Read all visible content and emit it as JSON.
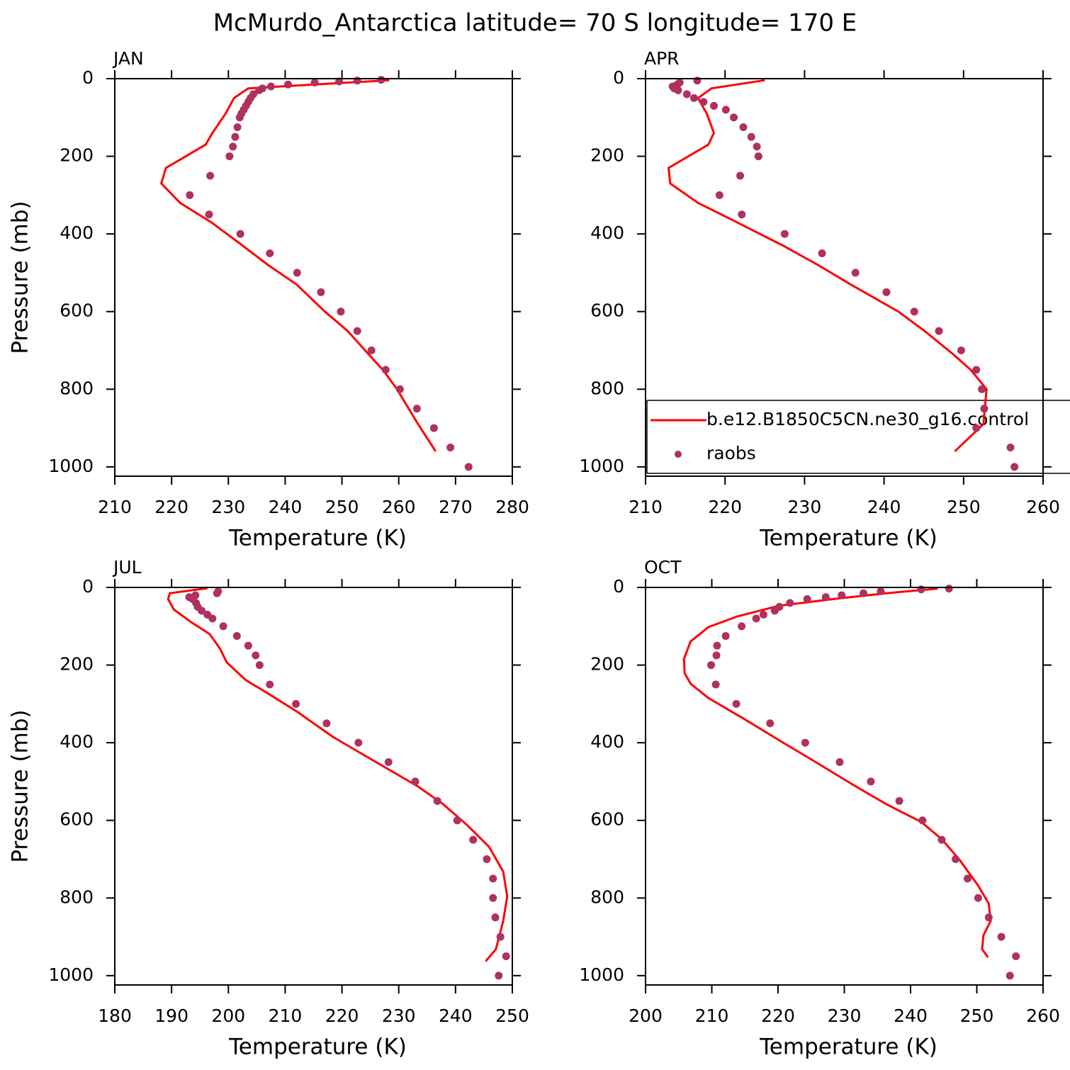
{
  "title": "McMurdo_Antarctica  latitude= 70 S longitude= 170 E",
  "chart_data": [
    {
      "type": "line",
      "label": "JAN",
      "xlabel": "Temperature (K)",
      "ylabel": "Pressure (mb)",
      "xlim": [
        210,
        280
      ],
      "ylim": [
        1024,
        0
      ],
      "xticks": [
        210,
        220,
        230,
        240,
        250,
        260,
        270,
        280
      ],
      "yticks": [
        0,
        200,
        400,
        600,
        800,
        1000
      ],
      "series": [
        {
          "type": "line",
          "color": "#ff0000",
          "x": [
            258.3,
            233.5,
            231,
            229.5,
            227.2,
            226,
            219,
            218.2,
            221.5,
            227,
            232.5,
            237,
            242,
            247,
            251,
            254.7,
            257.2,
            259.7,
            263.4,
            266.5
          ],
          "values": [
            4,
            25,
            50,
            90,
            140,
            170,
            230,
            270,
            320,
            370,
            430,
            480,
            530,
            600,
            650,
            710,
            750,
            800,
            890,
            960
          ]
        },
        {
          "type": "scatter",
          "color": "#b03060",
          "x": [
            272.3,
            269.1,
            266.2,
            263.2,
            260.2,
            257.7,
            255.2,
            252.7,
            249.8,
            246.3,
            242.1,
            237.3,
            232.1,
            226.6,
            223.2,
            226.8,
            230.2,
            230.8,
            231.2,
            231.6,
            232,
            232.3,
            232.7,
            233.1,
            233.5,
            233.9,
            234.4,
            235.4,
            236,
            237.5,
            240.5,
            245.2,
            249.5,
            252.7,
            256.9
          ],
          "values": [
            1000,
            950,
            900,
            850,
            800,
            750,
            700,
            650,
            600,
            550,
            500,
            450,
            400,
            350,
            300,
            250,
            200,
            175,
            150,
            125,
            100,
            90,
            80,
            70,
            60,
            50,
            40,
            30,
            25,
            20,
            15,
            10,
            7,
            5,
            3
          ]
        }
      ]
    },
    {
      "type": "line",
      "label": "APR",
      "xlabel": "Temperature (K)",
      "legend": "lower-right",
      "xlim": [
        210,
        260
      ],
      "ylim": [
        1024,
        0
      ],
      "xticks": [
        210,
        220,
        230,
        240,
        250,
        260
      ],
      "yticks": [
        0,
        200,
        400,
        600,
        800,
        1000
      ],
      "series": [
        {
          "type": "line",
          "name": "b.e12.B1850C5CN.ne30_g16.control",
          "color": "#ff0000",
          "x": [
            225,
            218.3,
            216.6,
            217.7,
            218.6,
            217.9,
            212.9,
            213.1,
            216.6,
            221.5,
            227.3,
            231.7,
            235.8,
            241.8,
            245.1,
            248.7,
            250.9,
            252.9,
            252.5,
            248.9
          ],
          "values": [
            4,
            25,
            50,
            90,
            140,
            170,
            230,
            270,
            320,
            370,
            430,
            480,
            530,
            600,
            650,
            710,
            750,
            800,
            890,
            960
          ]
        },
        {
          "type": "scatter",
          "name": "raobs",
          "color": "#b03060",
          "x": [
            256.4,
            255.9,
            251.6,
            252.6,
            252.3,
            251.6,
            249.7,
            246.9,
            243.8,
            240.3,
            236.4,
            232.2,
            227.5,
            222.1,
            219.3,
            221.9,
            224.2,
            224,
            223.3,
            222.3,
            221.1,
            220.1,
            218.6,
            217.3,
            216.1,
            215.2,
            214.1,
            213.6,
            213.4,
            214,
            214.3,
            216.5
          ],
          "values": [
            1000,
            950,
            900,
            850,
            800,
            750,
            700,
            650,
            600,
            550,
            500,
            450,
            400,
            350,
            300,
            250,
            200,
            175,
            150,
            125,
            100,
            80,
            70,
            60,
            50,
            40,
            30,
            25,
            20,
            15,
            10,
            5
          ]
        }
      ]
    },
    {
      "type": "line",
      "label": "JUL",
      "xlabel": "Temperature (K)",
      "ylabel": "Pressure (mb)",
      "xlim": [
        180,
        250
      ],
      "ylim": [
        1024,
        0
      ],
      "xticks": [
        180,
        190,
        200,
        210,
        220,
        230,
        240,
        250
      ],
      "yticks": [
        0,
        200,
        400,
        600,
        800,
        1000
      ],
      "series": [
        {
          "type": "line",
          "color": "#ff0000",
          "x": [
            196.3,
            189.7,
            189.4,
            190.4,
            193.5,
            196.7,
            198.5,
            199.7,
            203.1,
            207.2,
            212.2,
            218.4,
            225.9,
            233.4,
            237.8,
            242.1,
            245.9,
            248.4,
            249.1,
            248.4,
            247.1,
            245.3
          ],
          "values": [
            2,
            15,
            30,
            57,
            90,
            120,
            157,
            193,
            239,
            275,
            321,
            385,
            449,
            513,
            558,
            613,
            668,
            732,
            796,
            859,
            932,
            963
          ]
        },
        {
          "type": "scatter",
          "color": "#b03060",
          "x": [
            247.6,
            248.9,
            247.9,
            247,
            246.6,
            246.6,
            245.5,
            243.1,
            240.3,
            236.8,
            232.9,
            228.2,
            222.9,
            217.3,
            211.9,
            207.3,
            205.5,
            204.8,
            203.5,
            201.5,
            199.1,
            197.2,
            196.3,
            195.3,
            194.6,
            194.3,
            193.7,
            193.1,
            194.2,
            198,
            198.2
          ],
          "values": [
            1000,
            950,
            900,
            850,
            800,
            750,
            700,
            650,
            600,
            550,
            500,
            450,
            400,
            350,
            300,
            250,
            200,
            175,
            150,
            125,
            100,
            80,
            70,
            60,
            50,
            40,
            30,
            25,
            20,
            15,
            10
          ]
        }
      ]
    },
    {
      "type": "line",
      "label": "OCT",
      "xlabel": "Temperature (K)",
      "xlim": [
        200,
        260
      ],
      "ylim": [
        1024,
        0
      ],
      "xticks": [
        200,
        210,
        220,
        230,
        240,
        250,
        260
      ],
      "yticks": [
        0,
        200,
        400,
        600,
        800,
        1000
      ],
      "series": [
        {
          "type": "line",
          "color": "#ff0000",
          "x": [
            244.1,
            236.3,
            228.8,
            220.2,
            213.8,
            209.5,
            206.8,
            205.8,
            205.9,
            206.8,
            209.5,
            214.9,
            220.2,
            225.6,
            230.9,
            236.3,
            241.6,
            244.8,
            247.5,
            250.2,
            251.8,
            252.1,
            251,
            250.8,
            251.7
          ],
          "values": [
            3,
            15,
            29,
            47,
            75,
            102,
            139,
            184,
            221,
            248,
            285,
            339,
            394,
            449,
            504,
            558,
            604,
            650,
            704,
            768,
            814,
            859,
            896,
            932,
            953
          ]
        },
        {
          "type": "scatter",
          "color": "#b03060",
          "x": [
            255,
            255.9,
            253.7,
            251.8,
            250.2,
            248.6,
            246.8,
            244.7,
            241.8,
            238.3,
            234,
            229.3,
            224.1,
            218.8,
            213.7,
            210.6,
            209.9,
            210.7,
            210.8,
            212.1,
            214.5,
            216.7,
            217.8,
            219.5,
            220.2,
            221.8,
            224.4,
            227.2,
            229.6,
            232.9,
            235.5,
            241.6,
            245.8
          ],
          "values": [
            1000,
            950,
            900,
            850,
            800,
            750,
            700,
            650,
            600,
            550,
            500,
            450,
            400,
            350,
            300,
            250,
            200,
            175,
            150,
            125,
            100,
            80,
            70,
            60,
            50,
            40,
            30,
            25,
            20,
            15,
            10,
            5,
            3
          ]
        }
      ]
    }
  ]
}
